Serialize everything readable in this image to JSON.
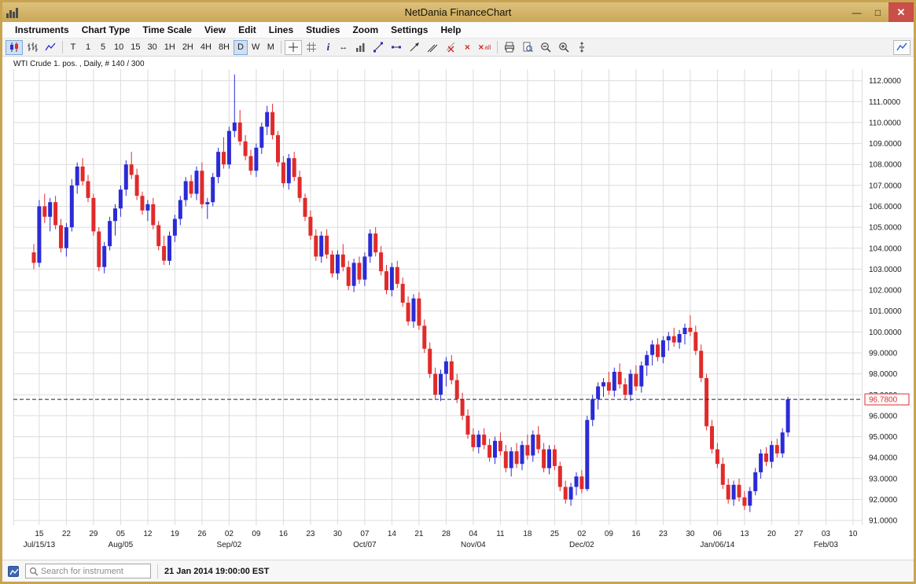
{
  "window": {
    "title": "NetDania FinanceChart"
  },
  "menu": {
    "items": [
      "Instruments",
      "Chart Type",
      "Time Scale",
      "View",
      "Edit",
      "Lines",
      "Studies",
      "Zoom",
      "Settings",
      "Help"
    ]
  },
  "toolbar": {
    "timeframes": [
      "T",
      "1",
      "5",
      "10",
      "15",
      "30",
      "1H",
      "2H",
      "4H",
      "8H",
      "D",
      "W",
      "M"
    ],
    "selected_timeframe": "D",
    "delete_all_label": "all",
    "icons": [
      "chart-type-candlestick",
      "chart-type-bar",
      "chart-type-line",
      "crosshair",
      "grid",
      "info",
      "horizontal-pan",
      "volume",
      "trendline",
      "horizontal-line",
      "trendline-ray",
      "trend-channel",
      "remove-line",
      "delete-line",
      "delete-all-lines",
      "print",
      "print-preview",
      "zoom-out",
      "zoom-in",
      "value-scale",
      "new-chart"
    ]
  },
  "chart": {
    "label": "WTI Crude 1. pos. , Daily, # 140 / 300"
  },
  "statusbar": {
    "search_placeholder": "Search for instrument",
    "timestamp": "21 Jan 2014 19:00:00 EST"
  },
  "chart_data": {
    "type": "candlestick",
    "title": "WTI Crude 1. pos.",
    "timeframe": "Daily",
    "bar_count": "140 / 300",
    "last_price": 96.78,
    "last_price_label": "96.7800",
    "y_axis": {
      "min": 91,
      "max": 112,
      "step": 1
    },
    "colors": {
      "up": "#2b2bd5",
      "down": "#e02b2b",
      "grid": "#dcdcdc"
    },
    "x_ticks": [
      {
        "label": "15",
        "i": 1
      },
      {
        "label": "22",
        "i": 6
      },
      {
        "label": "29",
        "i": 11
      },
      {
        "label": "05",
        "i": 16
      },
      {
        "label": "12",
        "i": 21
      },
      {
        "label": "19",
        "i": 26
      },
      {
        "label": "26",
        "i": 31
      },
      {
        "label": "02",
        "i": 36
      },
      {
        "label": "09",
        "i": 41
      },
      {
        "label": "16",
        "i": 46
      },
      {
        "label": "23",
        "i": 51
      },
      {
        "label": "30",
        "i": 56
      },
      {
        "label": "07",
        "i": 61
      },
      {
        "label": "14",
        "i": 66
      },
      {
        "label": "21",
        "i": 71
      },
      {
        "label": "28",
        "i": 76
      },
      {
        "label": "04",
        "i": 81
      },
      {
        "label": "11",
        "i": 86
      },
      {
        "label": "18",
        "i": 91
      },
      {
        "label": "25",
        "i": 96
      },
      {
        "label": "02",
        "i": 101
      },
      {
        "label": "09",
        "i": 106
      },
      {
        "label": "16",
        "i": 111
      },
      {
        "label": "23",
        "i": 116
      },
      {
        "label": "30",
        "i": 121
      },
      {
        "label": "06",
        "i": 126
      },
      {
        "label": "13",
        "i": 131
      },
      {
        "label": "20",
        "i": 136
      },
      {
        "label": "27",
        "i": 141
      },
      {
        "label": "03",
        "i": 146
      },
      {
        "label": "10",
        "i": 151
      }
    ],
    "x_months": [
      {
        "label": "Jul/15/13",
        "i": 1
      },
      {
        "label": "Aug/05",
        "i": 16
      },
      {
        "label": "Sep/02",
        "i": 36
      },
      {
        "label": "Oct/07",
        "i": 61
      },
      {
        "label": "Nov/04",
        "i": 81
      },
      {
        "label": "Dec/02",
        "i": 101
      },
      {
        "label": "Jan/06/14",
        "i": 126
      },
      {
        "label": "Feb/03",
        "i": 146
      }
    ],
    "candles": [
      [
        103.8,
        104.2,
        103.0,
        103.3
      ],
      [
        103.3,
        106.3,
        103.1,
        106.0
      ],
      [
        106.0,
        106.6,
        105.2,
        105.5
      ],
      [
        105.5,
        106.4,
        104.8,
        106.2
      ],
      [
        106.2,
        106.5,
        104.9,
        105.1
      ],
      [
        105.1,
        105.4,
        103.8,
        104.0
      ],
      [
        104.0,
        105.2,
        103.6,
        105.0
      ],
      [
        105.0,
        107.3,
        104.8,
        107.0
      ],
      [
        107.0,
        108.1,
        106.6,
        107.9
      ],
      [
        107.9,
        108.3,
        107.0,
        107.2
      ],
      [
        107.2,
        107.5,
        106.2,
        106.4
      ],
      [
        106.4,
        106.6,
        104.6,
        104.8
      ],
      [
        104.8,
        105.0,
        102.9,
        103.1
      ],
      [
        103.1,
        104.3,
        102.8,
        104.1
      ],
      [
        104.1,
        105.5,
        103.9,
        105.3
      ],
      [
        105.3,
        106.1,
        104.6,
        105.9
      ],
      [
        105.9,
        107.0,
        105.5,
        106.8
      ],
      [
        106.8,
        108.2,
        106.5,
        108.0
      ],
      [
        108.0,
        108.6,
        107.3,
        107.5
      ],
      [
        107.5,
        107.8,
        106.3,
        106.5
      ],
      [
        106.5,
        106.7,
        105.6,
        105.8
      ],
      [
        105.8,
        106.3,
        105.3,
        106.1
      ],
      [
        106.1,
        106.4,
        104.9,
        105.1
      ],
      [
        105.1,
        105.3,
        103.9,
        104.1
      ],
      [
        104.1,
        104.6,
        103.2,
        103.4
      ],
      [
        103.4,
        104.8,
        103.2,
        104.6
      ],
      [
        104.6,
        105.6,
        104.3,
        105.4
      ],
      [
        105.4,
        106.5,
        105.1,
        106.3
      ],
      [
        106.3,
        107.4,
        106.0,
        107.2
      ],
      [
        107.2,
        107.5,
        106.4,
        106.6
      ],
      [
        106.6,
        107.9,
        106.3,
        107.7
      ],
      [
        107.7,
        108.1,
        105.9,
        106.1
      ],
      [
        106.1,
        106.4,
        105.4,
        106.2
      ],
      [
        106.2,
        107.6,
        106.0,
        107.4
      ],
      [
        107.4,
        108.8,
        107.1,
        108.6
      ],
      [
        108.6,
        109.3,
        107.8,
        108.0
      ],
      [
        108.0,
        109.8,
        107.8,
        109.6
      ],
      [
        109.6,
        112.3,
        109.3,
        110.0
      ],
      [
        110.0,
        110.6,
        108.9,
        109.1
      ],
      [
        109.1,
        109.4,
        108.2,
        108.4
      ],
      [
        108.4,
        108.7,
        107.5,
        107.7
      ],
      [
        107.7,
        109.0,
        107.4,
        108.8
      ],
      [
        108.8,
        110.0,
        108.5,
        109.8
      ],
      [
        109.8,
        110.8,
        109.4,
        110.5
      ],
      [
        110.5,
        110.9,
        109.2,
        109.4
      ],
      [
        109.4,
        109.6,
        107.9,
        108.1
      ],
      [
        108.1,
        108.4,
        106.9,
        107.1
      ],
      [
        107.1,
        108.5,
        106.8,
        108.3
      ],
      [
        108.3,
        108.6,
        107.2,
        107.4
      ],
      [
        107.4,
        107.7,
        106.2,
        106.4
      ],
      [
        106.4,
        106.6,
        105.3,
        105.5
      ],
      [
        105.5,
        105.8,
        104.4,
        104.6
      ],
      [
        104.6,
        104.9,
        103.4,
        103.6
      ],
      [
        103.6,
        104.8,
        103.3,
        104.6
      ],
      [
        104.6,
        104.9,
        103.5,
        103.7
      ],
      [
        103.7,
        103.9,
        102.6,
        102.8
      ],
      [
        102.8,
        103.9,
        102.5,
        103.7
      ],
      [
        103.7,
        104.2,
        102.9,
        103.1
      ],
      [
        103.1,
        103.4,
        102.0,
        102.2
      ],
      [
        102.2,
        103.5,
        101.9,
        103.3
      ],
      [
        103.3,
        103.6,
        102.3,
        102.5
      ],
      [
        102.5,
        103.8,
        102.2,
        103.6
      ],
      [
        103.6,
        104.9,
        103.3,
        104.7
      ],
      [
        104.7,
        105.0,
        103.6,
        103.8
      ],
      [
        103.8,
        104.1,
        102.7,
        102.9
      ],
      [
        102.9,
        103.2,
        101.8,
        102.0
      ],
      [
        102.0,
        103.3,
        101.7,
        103.1
      ],
      [
        103.1,
        103.4,
        102.1,
        102.3
      ],
      [
        102.3,
        102.6,
        101.2,
        101.4
      ],
      [
        101.4,
        101.7,
        100.3,
        100.5
      ],
      [
        100.5,
        101.8,
        100.2,
        101.6
      ],
      [
        101.6,
        101.9,
        100.1,
        100.3
      ],
      [
        100.3,
        100.6,
        99.0,
        99.2
      ],
      [
        99.2,
        99.5,
        97.8,
        98.0
      ],
      [
        98.0,
        98.3,
        96.8,
        97.0
      ],
      [
        97.0,
        98.2,
        96.7,
        98.0
      ],
      [
        98.0,
        98.8,
        97.4,
        98.6
      ],
      [
        98.6,
        98.9,
        97.5,
        97.7
      ],
      [
        97.7,
        98.0,
        96.6,
        96.8
      ],
      [
        96.8,
        97.1,
        95.8,
        96.0
      ],
      [
        96.0,
        96.3,
        94.9,
        95.1
      ],
      [
        95.1,
        95.4,
        94.3,
        94.5
      ],
      [
        94.5,
        95.3,
        94.2,
        95.1
      ],
      [
        95.1,
        95.4,
        94.4,
        94.6
      ],
      [
        94.6,
        94.9,
        93.8,
        94.0
      ],
      [
        94.0,
        95.0,
        93.7,
        94.8
      ],
      [
        94.8,
        95.2,
        94.1,
        94.3
      ],
      [
        94.3,
        94.6,
        93.3,
        93.5
      ],
      [
        93.5,
        94.5,
        93.1,
        94.3
      ],
      [
        94.3,
        94.7,
        93.5,
        93.7
      ],
      [
        93.7,
        94.8,
        93.4,
        94.6
      ],
      [
        94.6,
        95.1,
        93.9,
        94.1
      ],
      [
        94.1,
        95.3,
        93.8,
        95.1
      ],
      [
        95.1,
        95.5,
        94.2,
        94.4
      ],
      [
        94.4,
        94.7,
        93.3,
        93.5
      ],
      [
        93.5,
        94.6,
        93.2,
        94.4
      ],
      [
        94.4,
        94.6,
        93.4,
        93.6
      ],
      [
        93.6,
        93.8,
        92.4,
        92.6
      ],
      [
        92.6,
        92.9,
        91.8,
        92.0
      ],
      [
        92.0,
        92.8,
        91.7,
        92.6
      ],
      [
        92.6,
        93.3,
        92.2,
        93.1
      ],
      [
        93.1,
        93.4,
        92.3,
        92.5
      ],
      [
        92.5,
        96.0,
        92.4,
        95.8
      ],
      [
        95.8,
        97.0,
        95.5,
        96.8
      ],
      [
        96.8,
        97.6,
        96.3,
        97.4
      ],
      [
        97.4,
        97.8,
        96.9,
        97.6
      ],
      [
        97.6,
        98.1,
        97.0,
        97.2
      ],
      [
        97.2,
        98.3,
        96.9,
        98.1
      ],
      [
        98.1,
        98.5,
        97.3,
        97.5
      ],
      [
        97.5,
        97.8,
        96.8,
        97.0
      ],
      [
        97.0,
        98.2,
        96.7,
        98.0
      ],
      [
        98.0,
        98.4,
        97.2,
        97.4
      ],
      [
        97.4,
        98.6,
        97.1,
        98.4
      ],
      [
        98.4,
        99.1,
        97.9,
        98.9
      ],
      [
        98.9,
        99.6,
        98.4,
        99.4
      ],
      [
        99.4,
        99.7,
        98.6,
        98.8
      ],
      [
        98.8,
        99.8,
        98.5,
        99.6
      ],
      [
        99.6,
        100.0,
        99.1,
        99.8
      ],
      [
        99.8,
        100.2,
        99.3,
        99.5
      ],
      [
        99.5,
        100.1,
        99.2,
        99.9
      ],
      [
        99.9,
        100.4,
        99.4,
        100.2
      ],
      [
        100.2,
        100.8,
        99.8,
        100.0
      ],
      [
        100.0,
        100.3,
        98.9,
        99.1
      ],
      [
        99.1,
        99.4,
        97.6,
        97.8
      ],
      [
        97.8,
        98.0,
        95.3,
        95.5
      ],
      [
        95.5,
        95.8,
        94.2,
        94.4
      ],
      [
        94.4,
        94.7,
        93.5,
        93.7
      ],
      [
        93.7,
        94.0,
        92.5,
        92.7
      ],
      [
        92.7,
        93.0,
        91.8,
        92.0
      ],
      [
        92.0,
        92.9,
        91.7,
        92.7
      ],
      [
        92.7,
        93.0,
        91.9,
        92.1
      ],
      [
        92.1,
        92.4,
        91.5,
        91.7
      ],
      [
        91.7,
        92.6,
        91.4,
        92.4
      ],
      [
        92.4,
        93.5,
        92.2,
        93.3
      ],
      [
        93.3,
        94.4,
        93.0,
        94.2
      ],
      [
        94.2,
        94.5,
        93.6,
        93.8
      ],
      [
        93.8,
        94.8,
        93.5,
        94.6
      ],
      [
        94.6,
        94.9,
        94.0,
        94.2
      ],
      [
        94.2,
        95.4,
        94.0,
        95.2
      ],
      [
        95.2,
        96.9,
        95.0,
        96.78
      ]
    ]
  }
}
